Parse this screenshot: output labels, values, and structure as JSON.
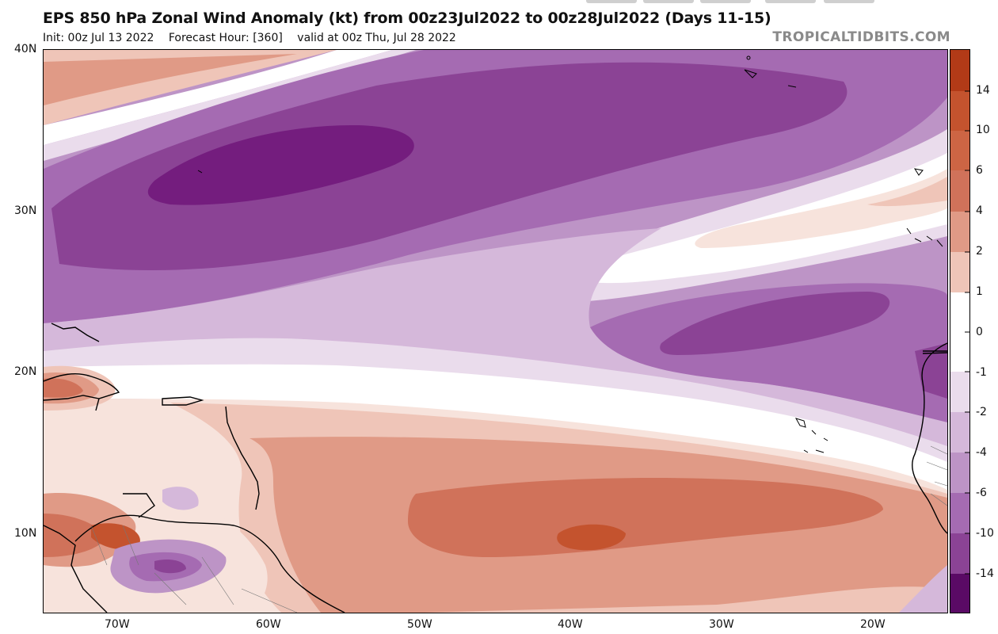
{
  "header": {
    "title": "EPS 850 hPa Zonal Wind Anomaly (kt) from 00z23Jul2022 to 00z28Jul2022 (Days 11-15)",
    "init": "Init: 00z Jul 13 2022",
    "forecast_hour": "Forecast Hour: [360]",
    "valid": "valid at 00z Thu, Jul 28 2022",
    "brand": "TROPICALTIDBITS.COM"
  },
  "map": {
    "lat_labels": [
      "40N",
      "30N",
      "20N",
      "10N"
    ],
    "lon_labels": [
      "70W",
      "60W",
      "50W",
      "40W",
      "30W",
      "20W"
    ],
    "extent": {
      "lon_min": -75,
      "lon_max": -15,
      "lat_min": 5,
      "lat_max": 40
    }
  },
  "colorbar": {
    "labels": [
      "14",
      "10",
      "6",
      "4",
      "2",
      "1",
      "0",
      "-1",
      "-2",
      "-4",
      "-6",
      "-10",
      "-14"
    ],
    "colors": {
      "pos_15": "#b23a17",
      "pos_10": "#c4532e",
      "pos_6": "#d0725a",
      "pos_4": "#e09a86",
      "pos_2": "#efc5b8",
      "pos_1": "#f7e3dc",
      "zero": "#ffffff",
      "neg_1": "#eadcec",
      "neg_2": "#d5b8da",
      "neg_4": "#bd94c6",
      "neg_6": "#a56bb2",
      "neg_10": "#8b4395",
      "neg_14": "#741d7e",
      "neg_15": "#5a0a65"
    }
  }
}
